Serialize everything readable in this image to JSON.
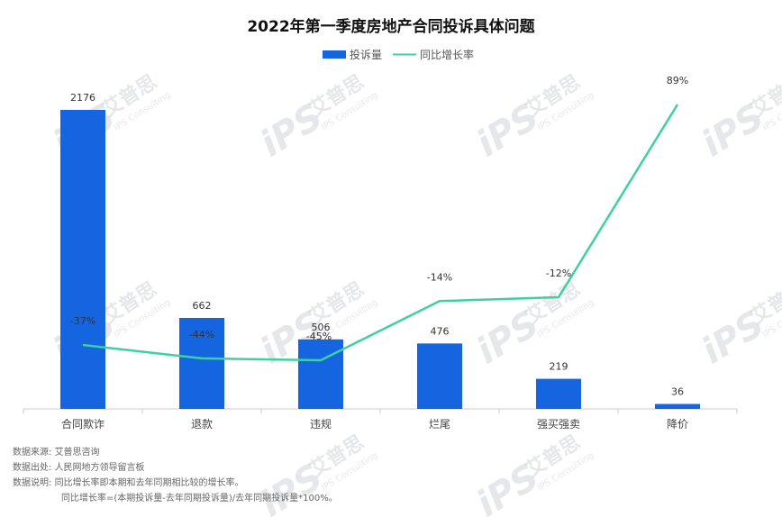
{
  "chart_data": {
    "type": "bar",
    "title": "2022年第一季度房地产合同投诉具体问题",
    "categories": [
      "合同欺诈",
      "退款",
      "违规",
      "烂尾",
      "强买强卖",
      "降价"
    ],
    "series": [
      {
        "name": "投诉量",
        "type": "bar",
        "values": [
          2176,
          662,
          506,
          476,
          219,
          36
        ],
        "value_labels": [
          "2176",
          "662",
          "506",
          "476",
          "219",
          "36"
        ]
      },
      {
        "name": "同比增长率",
        "type": "line",
        "values": [
          -37,
          -44,
          -45,
          -14,
          -12,
          89
        ],
        "value_labels": [
          "-37%",
          "-44%",
          "-45%",
          "-14%",
          "-12%",
          "89%"
        ]
      }
    ],
    "legend_position": "top",
    "grid": false,
    "colors": {
      "bar": "#1565e0",
      "line": "#3ed19e"
    }
  },
  "notes": {
    "source_label": "数据来源:",
    "source_value": "艾普思咨询",
    "origin_label": "数据出处:",
    "origin_value": "人民网地方领导留言板",
    "explain_label": "数据说明:",
    "explain_value": "同比增长率即本期和去年同期相比较的增长率。",
    "formula": "同比增长率=(本期投诉量-去年同期投诉量)/去年同期投诉量*100%。"
  },
  "watermark": {
    "logo": "iPS",
    "cn": "艾普思",
    "en": "IPS Consulting"
  }
}
